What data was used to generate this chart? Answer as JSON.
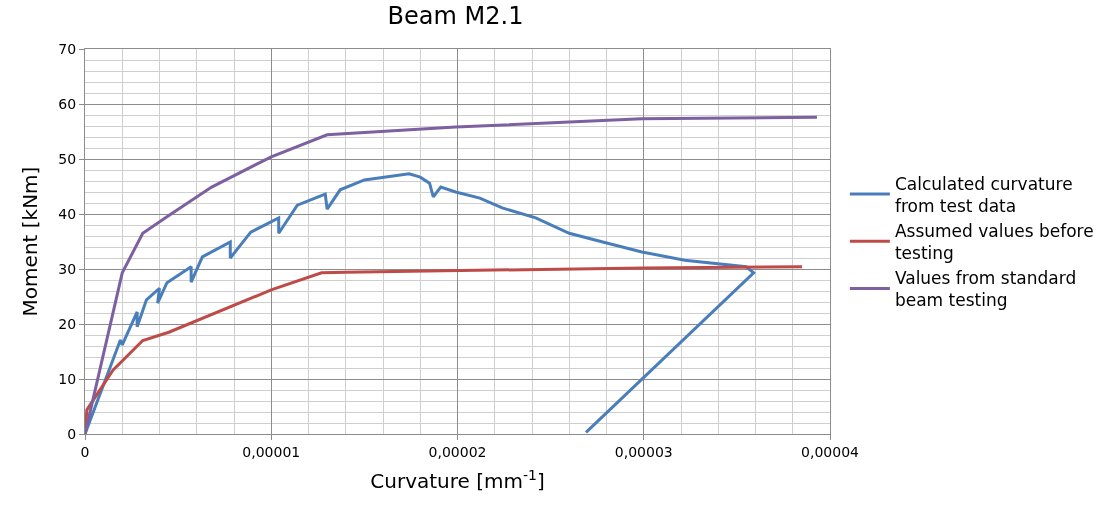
{
  "chart_data": {
    "type": "line",
    "title": "Beam M2.1",
    "xlabel": "Curvature [mm$^{-1}$]",
    "ylabel": "Moment [kNm]",
    "xlim": [
      0,
      4e-05
    ],
    "ylim": [
      0,
      70
    ],
    "xticks": [
      0,
      {
        "value": 1e-05,
        "label": "0,00001"
      },
      {
        "value": 2e-05,
        "label": "0,00002"
      },
      {
        "value": 3e-05,
        "label": "0,00003"
      },
      {
        "value": 4e-05,
        "label": "0,00004"
      }
    ],
    "yticks": [
      0,
      10,
      20,
      30,
      40,
      50,
      60,
      70
    ],
    "grid": true,
    "legend": "right",
    "marker": "none",
    "line_style": "solid",
    "series": [
      {
        "name": "Calculated curvature from test data",
        "color": "#4a7ebb",
        "x": [
          0,
          1.9e-06,
          2e-06,
          2.8e-06,
          2.8e-06,
          3.3e-06,
          4e-06,
          3.9e-06,
          4.4e-06,
          5.7e-06,
          5.7e-06,
          6.3e-06,
          7.8e-06,
          7.8e-06,
          8.9e-06,
          1.04e-05,
          1.04e-05,
          1.14e-05,
          1.29e-05,
          1.3e-05,
          1.37e-05,
          1.5e-05,
          1.74e-05,
          1.8e-05,
          1.85e-05,
          1.87e-05,
          1.91e-05,
          1.99e-05,
          2.12e-05,
          2.24e-05,
          2.42e-05,
          2.6e-05,
          2.78e-05,
          2.99e-05,
          3.22e-05,
          3.55e-05,
          3.59e-05,
          2.69e-05
        ],
        "values": [
          0,
          17.1,
          16.2,
          22.2,
          19.5,
          24.4,
          26.5,
          23.8,
          27.5,
          30.4,
          27.6,
          32.2,
          34.9,
          32,
          36.7,
          39.3,
          36.5,
          41.6,
          43.6,
          40.9,
          44.4,
          46.2,
          47.3,
          46.7,
          45.6,
          43.1,
          44.9,
          44,
          42.9,
          41.1,
          39.3,
          36.5,
          34.9,
          33.1,
          31.6,
          30.4,
          29.3,
          0.3
        ]
      },
      {
        "name": "Assumed values before testing",
        "color": "#be4b48",
        "x": [
          0,
          1e-07,
          1.5e-06,
          3.1e-06,
          4.5e-06,
          1e-05,
          1.27e-05,
          1.4e-05,
          3e-05,
          3.85e-05
        ],
        "values": [
          0,
          4.4,
          11.6,
          17,
          18.5,
          26.2,
          29.3,
          29.4,
          30.2,
          30.4
        ]
      },
      {
        "name": "Values from standard beam testing",
        "color": "#7d60a0",
        "x": [
          0,
          2e-06,
          3.1e-06,
          4.4e-06,
          6.8e-06,
          1e-05,
          1.3e-05,
          1.99e-05,
          2.99e-05,
          3.93e-05
        ],
        "values": [
          0,
          29.3,
          36.5,
          39.5,
          44.9,
          50.4,
          54.4,
          55.8,
          57.3,
          57.6
        ]
      }
    ]
  }
}
